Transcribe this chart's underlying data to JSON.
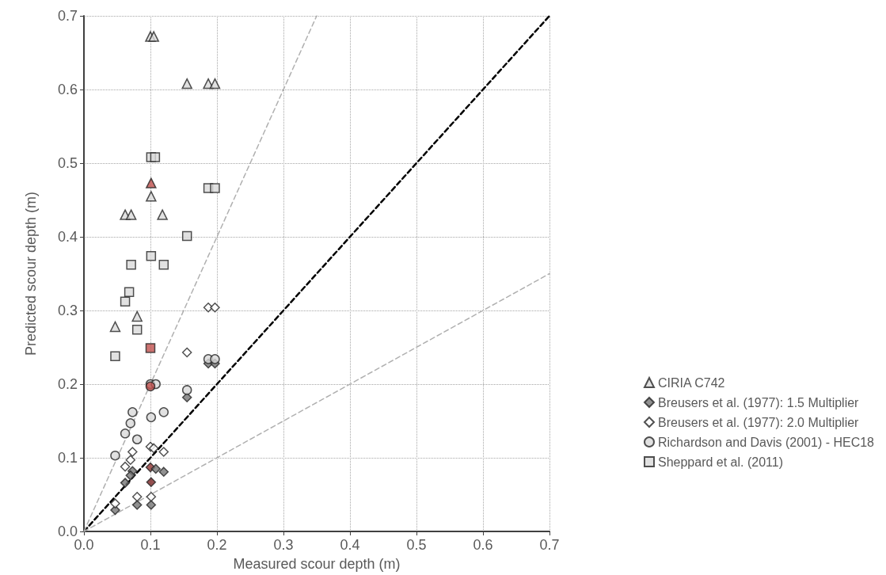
{
  "chart_data": {
    "type": "scatter",
    "xlabel": "Measured scour depth (m)",
    "ylabel": "Predicted scour depth (m)",
    "xlim": [
      0,
      0.7
    ],
    "ylim": [
      0,
      0.7
    ],
    "xticks": [
      {
        "value": 0,
        "label": "0.0"
      },
      0.1,
      0.2,
      0.3,
      0.4,
      0.5,
      0.6,
      0.7
    ],
    "yticks": [
      {
        "value": 0,
        "label": "0.0"
      },
      0.1,
      0.2,
      0.3,
      0.4,
      0.5,
      0.6,
      0.7
    ],
    "grid": true,
    "legend": "right",
    "series": [
      {
        "name": "CIRIA C742",
        "marker": "triangle",
        "color": "#d9d9d9",
        "x": [
          0.1,
          0.105,
          0.155,
          0.187,
          0.197,
          0.101,
          0.101,
          0.062,
          0.071,
          0.118,
          0.08,
          0.047
        ],
        "values": [
          0.672,
          0.672,
          0.608,
          0.608,
          0.608,
          0.473,
          0.455,
          0.43,
          0.43,
          0.43,
          0.292,
          0.278
        ],
        "colors": [
          "#d9d9d9",
          "#d9d9d9",
          "#d9d9d9",
          "#d9d9d9",
          "#d9d9d9",
          "#c0504d",
          "#d9d9d9",
          "#d9d9d9",
          "#d9d9d9",
          "#d9d9d9",
          "#d9d9d9",
          "#d9d9d9"
        ]
      },
      {
        "name": "Breusers et al. (1977): 1.5 Multiplier",
        "marker": "diamond",
        "color": "#767676",
        "x": [
          0.187,
          0.197,
          0.155,
          0.1,
          0.108,
          0.12,
          0.073,
          0.07,
          0.062,
          0.047,
          0.08,
          0.101,
          0.101
        ],
        "values": [
          0.228,
          0.228,
          0.182,
          0.087,
          0.085,
          0.081,
          0.082,
          0.076,
          0.066,
          0.029,
          0.036,
          0.036,
          0.067
        ],
        "colors": [
          "#767676",
          "#767676",
          "#767676",
          "#943634",
          "#767676",
          "#767676",
          "#767676",
          "#767676",
          "#767676",
          "#767676",
          "#767676",
          "#767676",
          "#7b2424"
        ]
      },
      {
        "name": "Breusers et al. (1977): 2.0 Multiplier",
        "marker": "diamond",
        "color": "#ffffff",
        "x": [
          0.187,
          0.197,
          0.155,
          0.1,
          0.105,
          0.12,
          0.073,
          0.07,
          0.062,
          0.047,
          0.08,
          0.101
        ],
        "values": [
          0.304,
          0.304,
          0.243,
          0.115,
          0.113,
          0.108,
          0.108,
          0.097,
          0.088,
          0.038,
          0.047,
          0.047
        ]
      },
      {
        "name": "Richardson and Davis (2001) - HEC18",
        "marker": "circle",
        "color": "#d9d9d9",
        "x": [
          0.1,
          0.108,
          0.1,
          0.187,
          0.197,
          0.155,
          0.12,
          0.073,
          0.07,
          0.101,
          0.062,
          0.08,
          0.047
        ],
        "values": [
          0.2,
          0.2,
          0.197,
          0.234,
          0.234,
          0.192,
          0.162,
          0.162,
          0.147,
          0.155,
          0.133,
          0.125,
          0.103
        ],
        "colors": [
          "#d9d9d9",
          "#d9d9d9",
          "#c0504d",
          "#d9d9d9",
          "#d9d9d9",
          "#d9d9d9",
          "#d9d9d9",
          "#d9d9d9",
          "#d9d9d9",
          "#d9d9d9",
          "#d9d9d9",
          "#d9d9d9",
          "#d9d9d9"
        ]
      },
      {
        "name": "Sheppard et al. (2011)",
        "marker": "square",
        "color": "#d9d9d9",
        "x": [
          0.101,
          0.107,
          0.187,
          0.197,
          0.155,
          0.101,
          0.071,
          0.12,
          0.068,
          0.062,
          0.08,
          0.047,
          0.1
        ],
        "values": [
          0.508,
          0.508,
          0.466,
          0.466,
          0.401,
          0.374,
          0.362,
          0.362,
          0.325,
          0.312,
          0.274,
          0.238,
          0.249
        ],
        "colors": [
          "#d9d9d9",
          "#d9d9d9",
          "#d9d9d9",
          "#d9d9d9",
          "#d9d9d9",
          "#d9d9d9",
          "#d9d9d9",
          "#d9d9d9",
          "#d9d9d9",
          "#d9d9d9",
          "#d9d9d9",
          "#d9d9d9",
          "#c0504d"
        ]
      },
      {
        "type": "line",
        "marker": "none",
        "line_style": "dashed",
        "color": "#000000",
        "x": [
          0,
          0.7
        ],
        "values": [
          0,
          0.7
        ]
      },
      {
        "type": "line",
        "marker": "none",
        "line_style": "dashed",
        "color": "#b0b0b0",
        "x": [
          0,
          0.35
        ],
        "values": [
          0,
          0.7
        ]
      },
      {
        "type": "line",
        "marker": "none",
        "line_style": "dashed",
        "color": "#b0b0b0",
        "x": [
          0,
          0.7
        ],
        "values": [
          0,
          0.35
        ]
      }
    ]
  }
}
